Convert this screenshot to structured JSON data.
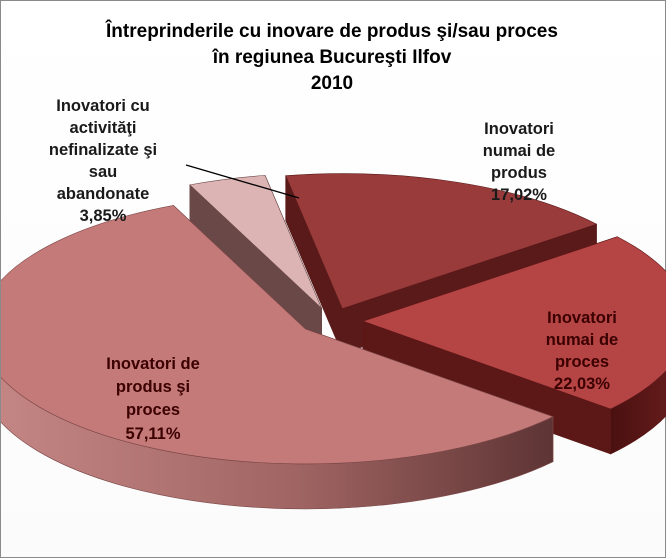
{
  "chart_data": {
    "type": "pie",
    "title_lines": [
      "Întreprinderile cu inovare de produs şi/sau proces",
      "în regiunea Bucureşti Ilfov",
      "2010"
    ],
    "slices": [
      {
        "name": "Inovatori numai de produs",
        "value": 17.02,
        "label_lines": [
          "Inovatori",
          "numai de",
          "produs",
          "17,02%"
        ],
        "color": "#9a3b3b",
        "side_color": "#5a1a1a"
      },
      {
        "name": "Inovatori numai de proces",
        "value": 22.03,
        "label_lines": [
          "Inovatori",
          "numai de",
          "proces",
          "22,03%"
        ],
        "color": "#b54444",
        "side_color": "#5c1717"
      },
      {
        "name": "Inovatori de produs şi proces",
        "value": 57.11,
        "label_lines": [
          "Inovatori de",
          "produs şi",
          "proces",
          "57,11%"
        ],
        "color": "#c47a78",
        "side_color": "#7b4646"
      },
      {
        "name": "Inovatori cu activităţi nefinalizate şi sau abandonate",
        "value": 3.85,
        "label_lines": [
          "Inovatori cu",
          "activităţi",
          "nefinalizate şi",
          "sau",
          "abandonate",
          "3,85%"
        ],
        "color": "#ddb4b4",
        "side_color": "#6a4848"
      }
    ],
    "exploded": true,
    "three_d": true
  }
}
